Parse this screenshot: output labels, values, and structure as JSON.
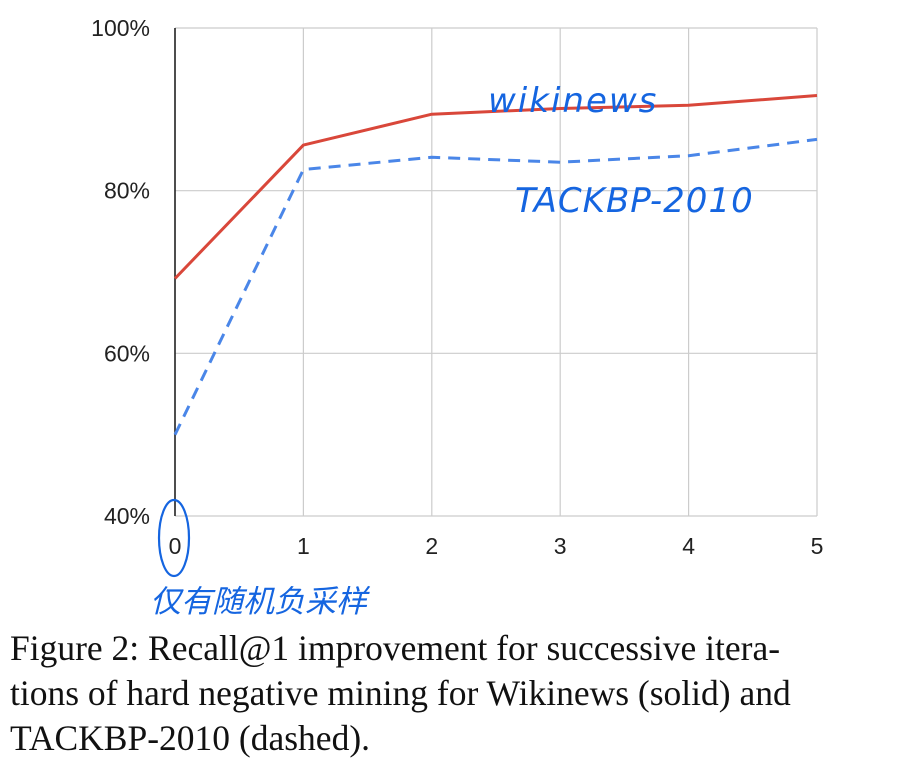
{
  "chart_data": {
    "type": "line",
    "x": [
      0,
      1,
      2,
      3,
      4,
      5
    ],
    "series": [
      {
        "values": [
          69.2,
          85.6,
          89.4,
          90.1,
          90.5,
          91.7
        ],
        "style": "solid",
        "color": "#d9473a"
      },
      {
        "values": [
          50.0,
          82.6,
          84.1,
          83.5,
          84.3,
          86.3
        ],
        "style": "dashed",
        "color": "#4a86e8"
      }
    ],
    "ylim": [
      40,
      100
    ],
    "yticks": [
      "40%",
      "60%",
      "80%",
      "100%"
    ],
    "xticks": [
      "0",
      "1",
      "2",
      "3",
      "4",
      "5"
    ],
    "grid": true
  },
  "annotations": {
    "handwritten_wikinews": "wikinews",
    "handwritten_tackbp": "TACKBP-2010",
    "handwritten_note": "仅有随机负采样",
    "ink_color": "#1565e0"
  },
  "caption": {
    "line1": "Figure 2: Recall@1 improvement for successive itera-",
    "line2": "tions of hard negative mining for Wikinews (solid) and",
    "line3": "TACKBP-2010 (dashed)."
  }
}
